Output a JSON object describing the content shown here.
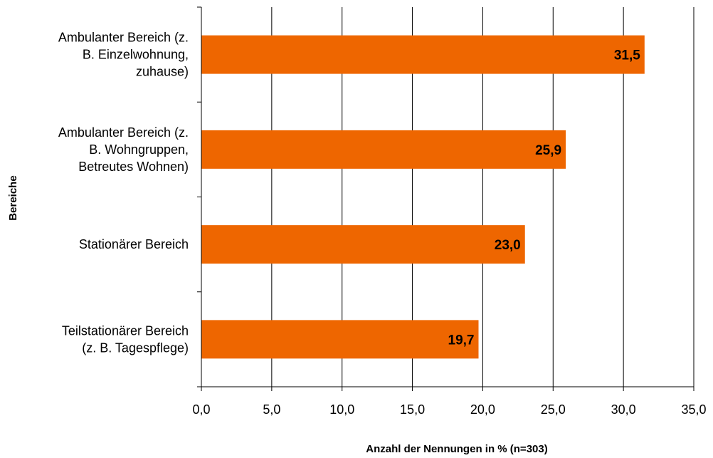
{
  "chart_data": {
    "type": "bar",
    "orientation": "horizontal",
    "categories": [
      [
        "Ambulanter Bereich (z.",
        "B. Einzelwohnung,",
        "zuhause)"
      ],
      [
        "Ambulanter Bereich (z.",
        "B. Wohngruppen,",
        "Betreutes Wohnen)"
      ],
      [
        "Stationärer Bereich"
      ],
      [
        "Teilstationärer Bereich",
        "(z. B. Tagespflege)"
      ]
    ],
    "values": [
      31.5,
      25.9,
      23.0,
      19.7
    ],
    "value_labels": [
      "31,5",
      "25,9",
      "23,0",
      "19,7"
    ],
    "xlim": [
      0,
      35
    ],
    "x_ticks": [
      0,
      5,
      10,
      15,
      20,
      25,
      30,
      35
    ],
    "x_tick_labels": [
      "0,0",
      "5,0",
      "10,0",
      "15,0",
      "20,0",
      "25,0",
      "30,0",
      "35,0"
    ],
    "xlabel": "Anzahl der Nennungen in % (n=303)",
    "ylabel": "Bereiche",
    "grid": "vertical",
    "bar_color": "#EE6600"
  }
}
